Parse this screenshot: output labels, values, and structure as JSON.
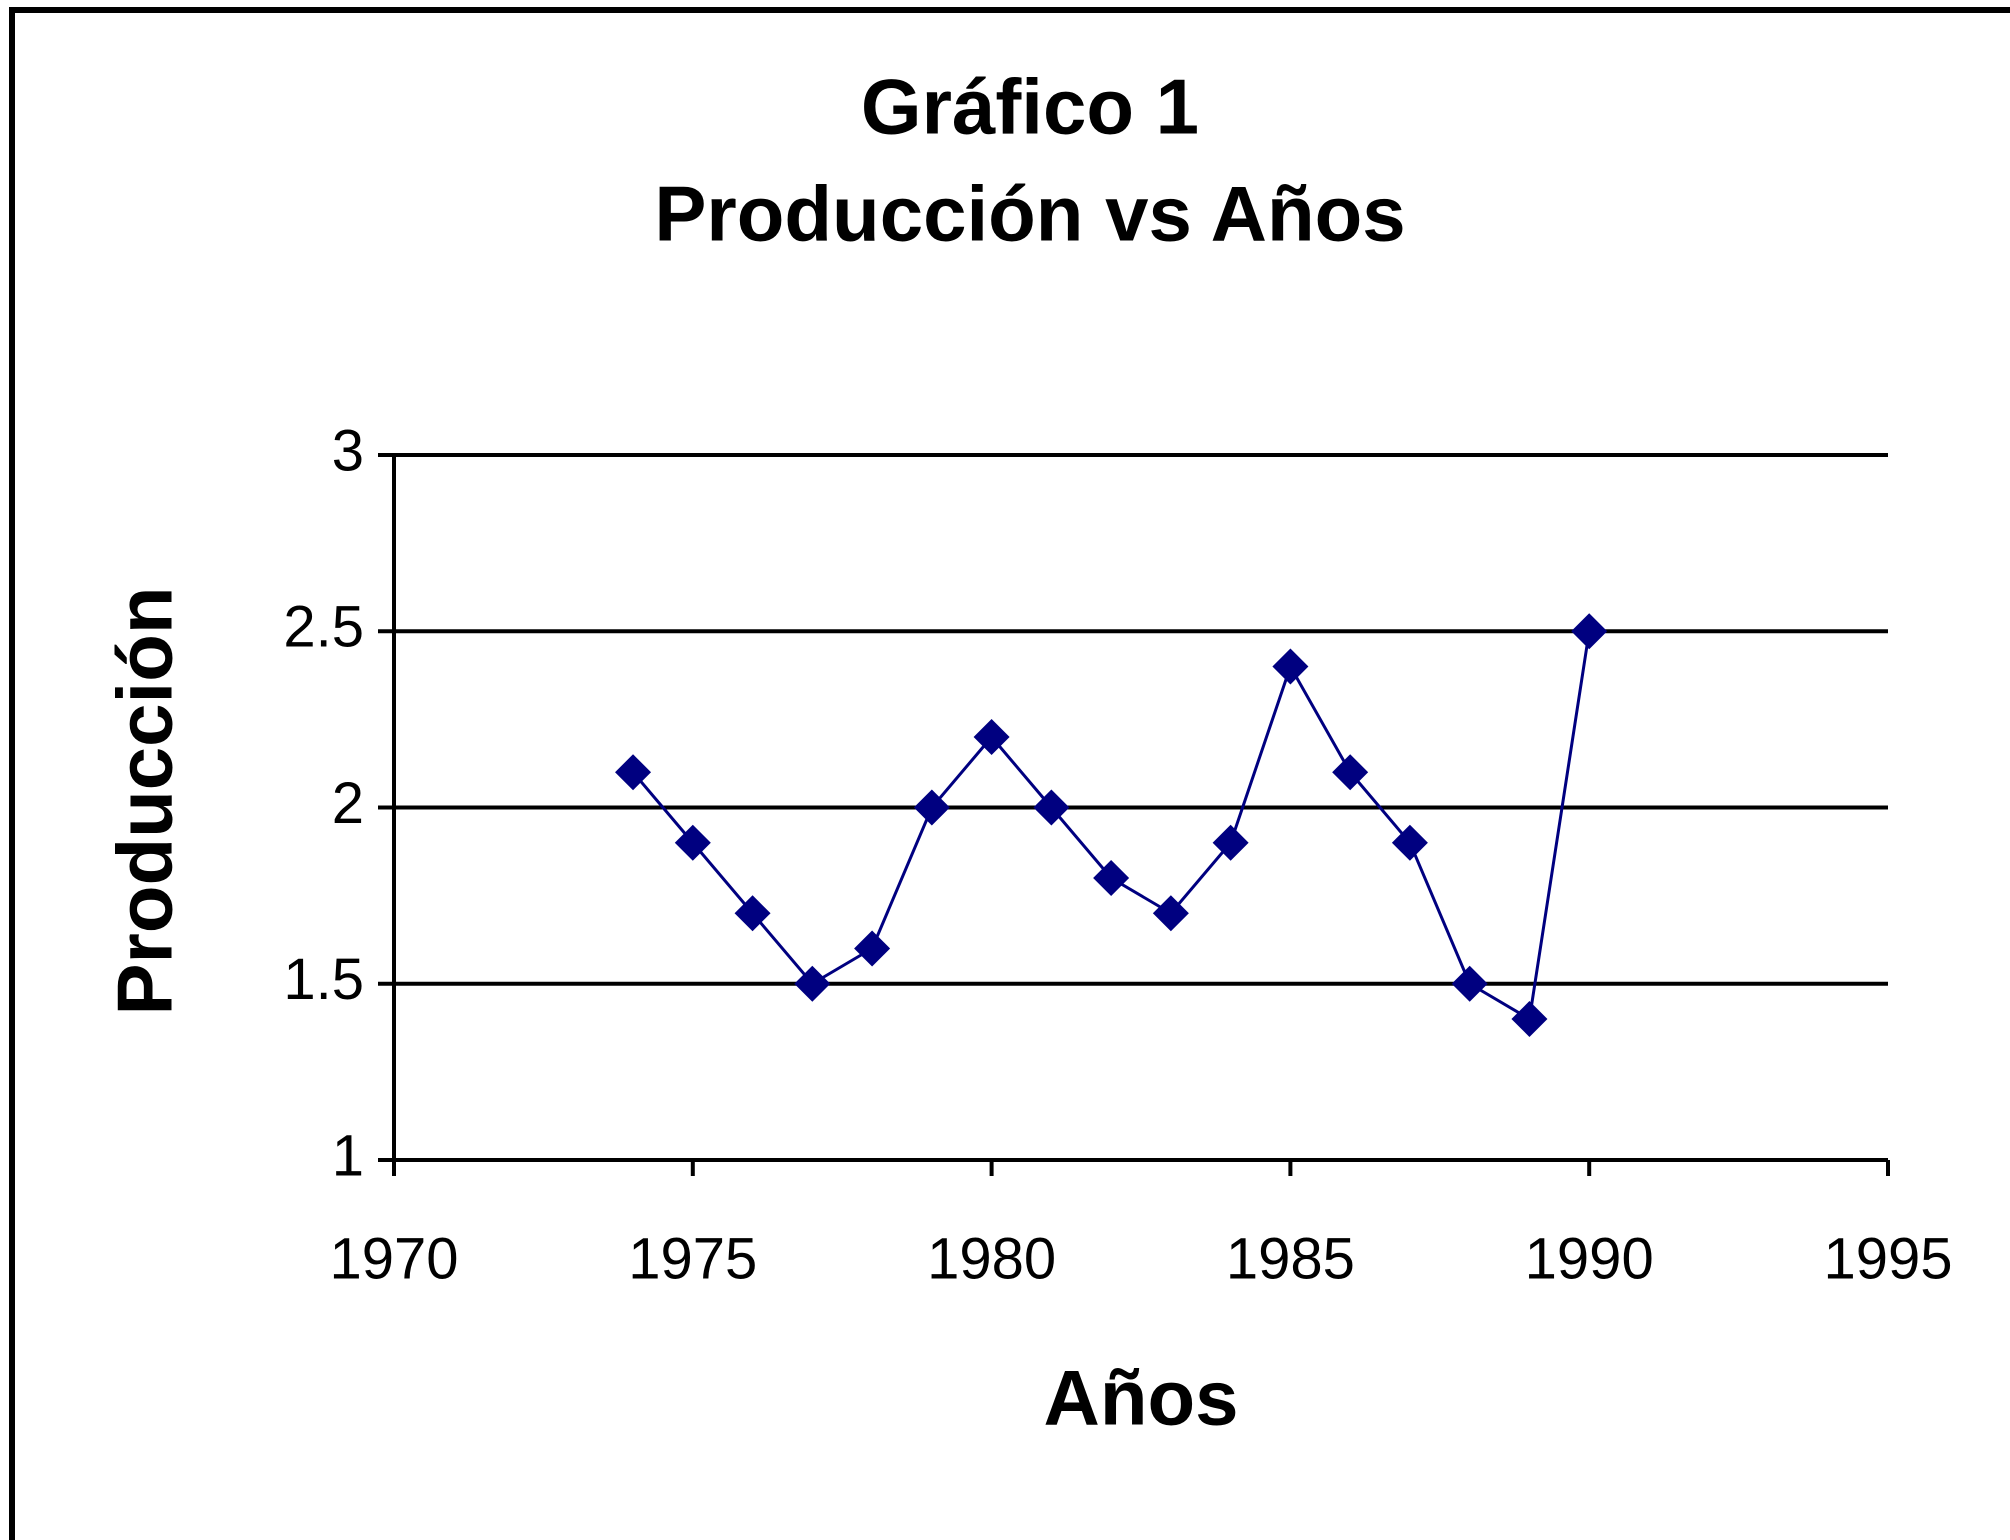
{
  "chart_data": {
    "type": "line",
    "title": "Gráfico 1",
    "subtitle": "Producción vs Años",
    "xlabel": "Años",
    "ylabel": "Producción",
    "x": [
      1974,
      1975,
      1976,
      1977,
      1978,
      1979,
      1980,
      1981,
      1982,
      1983,
      1984,
      1985,
      1986,
      1987,
      1988,
      1989,
      1990
    ],
    "series": [
      {
        "name": "Producción",
        "color": "#000080",
        "values": [
          2.1,
          1.9,
          1.7,
          1.5,
          1.6,
          2.0,
          2.2,
          2.0,
          1.8,
          1.7,
          1.9,
          2.4,
          2.1,
          1.9,
          1.5,
          1.4,
          2.5
        ]
      }
    ],
    "xlim": [
      1970,
      1995
    ],
    "xticks": [
      1970,
      1975,
      1980,
      1985,
      1990,
      1995
    ],
    "ylim": [
      1,
      3
    ],
    "yticks": [
      1,
      1.5,
      2,
      2.5,
      3
    ],
    "grid": true
  }
}
